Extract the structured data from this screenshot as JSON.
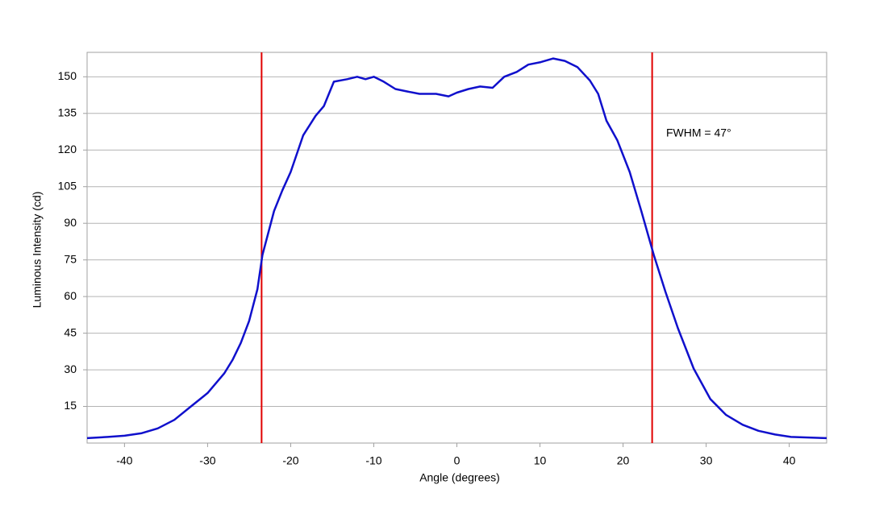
{
  "chart_data": {
    "type": "line",
    "xlabel": "Angle (degrees)",
    "ylabel": "Luminous Intensity (cd)",
    "annotation": "FWHM = 47°",
    "x": [
      -44.5,
      -42,
      -40,
      -38,
      -36,
      -34,
      -32,
      -30,
      -28,
      -27,
      -26,
      -25,
      -24,
      -23.4,
      -22,
      -21,
      -20,
      -18.5,
      -17,
      -16,
      -15.4,
      -14.8,
      -13.2,
      -12,
      -11,
      -10,
      -8.8,
      -7.4,
      -6,
      -4.5,
      -2.5,
      -1,
      0,
      1.4,
      2.8,
      4.3,
      5.7,
      7.2,
      8.6,
      10.1,
      11.6,
      13,
      14.5,
      16,
      17,
      18,
      19.3,
      20.8,
      22.2,
      23.7,
      25.1,
      26.6,
      28.5,
      30.5,
      32.4,
      34.4,
      36.3,
      38.3,
      40.2,
      44.5
    ],
    "series": [
      {
        "color": "#1010cc",
        "values": [
          2,
          2.5,
          3,
          4,
          6,
          9.5,
          15,
          20.5,
          28.5,
          34,
          41,
          50,
          63,
          77,
          95,
          103.5,
          111,
          126,
          134,
          138,
          143,
          148,
          149,
          150,
          149,
          150,
          148,
          145,
          144,
          143,
          143,
          142,
          143.5,
          145,
          146,
          145.5,
          150,
          152,
          155,
          156,
          157.5,
          156.5,
          154,
          148.5,
          143,
          132,
          124,
          111,
          95,
          77,
          62,
          47,
          30.5,
          18,
          11.5,
          7.5,
          5,
          3.5,
          2.5,
          2
        ]
      }
    ],
    "vlines": [
      -23.5,
      23.5
    ],
    "vline_color": "#e00000",
    "xlim": [
      -44.5,
      44.5
    ],
    "ylim": [
      0,
      160
    ],
    "xticks": [
      -40,
      -30,
      -20,
      -10,
      0,
      10,
      20,
      30,
      40
    ],
    "yticks": [
      15,
      30,
      45,
      60,
      75,
      90,
      105,
      120,
      135,
      150
    ],
    "grid": true
  }
}
